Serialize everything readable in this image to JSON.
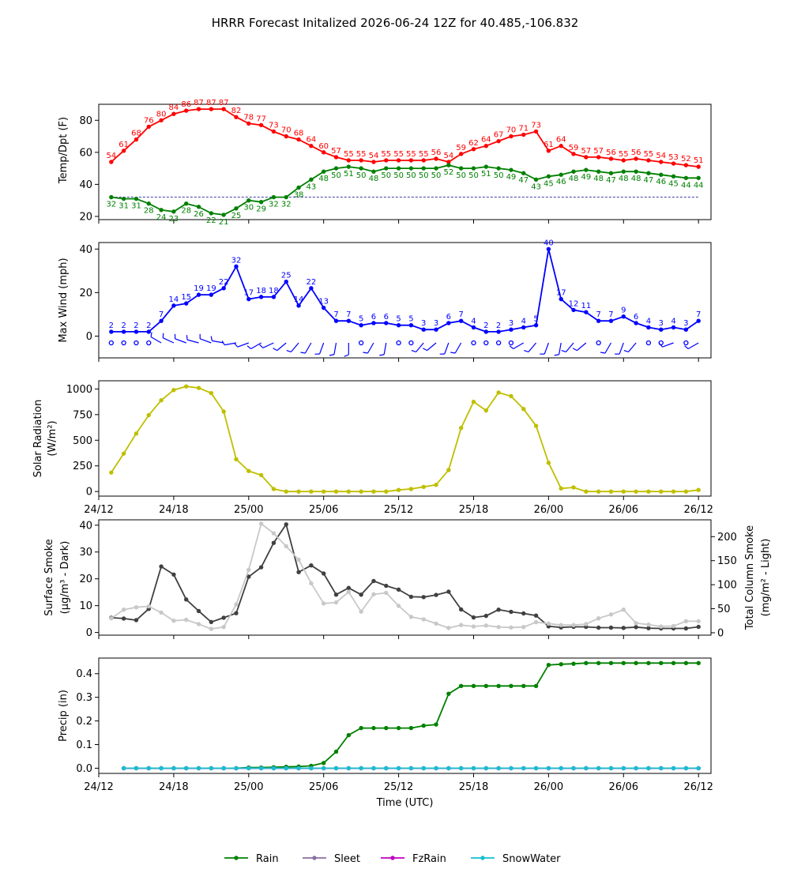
{
  "figure": {
    "title": "HRRR Forecast Initalized 2026-06-24 12Z for 40.485,-106.832"
  },
  "chart_data": [
    {
      "type": "line",
      "id": "temp",
      "ylabel": "Temp/Dpt (F)",
      "ylim": [
        18,
        90
      ],
      "yticks": [
        20,
        40,
        60,
        80
      ],
      "x": [
        1,
        2,
        3,
        4,
        5,
        6,
        7,
        8,
        9,
        10,
        11,
        12,
        13,
        14,
        15,
        16,
        17,
        18,
        19,
        20,
        21,
        22,
        23,
        24,
        25,
        26,
        27,
        28,
        29,
        30,
        31,
        32,
        33,
        34,
        35,
        36,
        37,
        38,
        39,
        40,
        41,
        42,
        43,
        44,
        45,
        46,
        47,
        48
      ],
      "reference_line": 32,
      "series": [
        {
          "color": "#ff0000",
          "values": [
            54,
            61,
            68,
            76,
            80,
            84,
            86,
            87,
            87,
            87,
            82,
            78,
            77,
            73,
            70,
            68,
            64,
            60,
            57,
            55,
            55,
            54,
            55,
            55,
            55,
            55,
            56,
            54,
            59,
            62,
            64,
            67,
            70,
            71,
            73,
            61,
            64,
            59,
            57,
            57,
            56,
            55,
            56,
            55,
            54,
            53,
            52,
            51
          ]
        },
        {
          "color": "#008000",
          "values": [
            32,
            31,
            31,
            28,
            24,
            23,
            28,
            26,
            22,
            21,
            25,
            30,
            29,
            32,
            32,
            38,
            43,
            48,
            50,
            51,
            50,
            48,
            50,
            50,
            50,
            50,
            50,
            52,
            50,
            50,
            51,
            50,
            49,
            47,
            43,
            45,
            46,
            48,
            49,
            48,
            47,
            48,
            48,
            47,
            46,
            45,
            44,
            44
          ]
        }
      ]
    },
    {
      "type": "line",
      "id": "wind",
      "ylabel": "Max Wind (mph)",
      "ylim": [
        -10,
        43
      ],
      "yticks": [
        0,
        20,
        40
      ],
      "x": [
        1,
        2,
        3,
        4,
        5,
        6,
        7,
        8,
        9,
        10,
        11,
        12,
        13,
        14,
        15,
        16,
        17,
        18,
        19,
        20,
        21,
        22,
        23,
        24,
        25,
        26,
        27,
        28,
        29,
        30,
        31,
        32,
        33,
        34,
        35,
        36,
        37,
        38,
        39,
        40,
        41,
        42,
        43,
        44,
        45,
        46,
        47,
        48
      ],
      "series": [
        {
          "color": "#0000ff",
          "values": [
            2,
            2,
            2,
            2,
            7,
            14,
            15,
            19,
            19,
            22,
            32,
            17,
            18,
            18,
            25,
            14,
            22,
            13,
            7,
            7,
            5,
            6,
            6,
            5,
            5,
            3,
            3,
            6,
            7,
            4,
            2,
            2,
            3,
            4,
            5,
            40,
            17,
            12,
            11,
            7,
            7,
            9,
            6,
            4,
            3,
            4,
            3,
            7
          ]
        }
      ],
      "barbs_calm": [
        1,
        2,
        3,
        4,
        21,
        24,
        25,
        30,
        31,
        32,
        33,
        40,
        44,
        45,
        47
      ]
    },
    {
      "type": "line",
      "id": "solar",
      "ylabel": "Solar Radiation (W/m²)",
      "ylim": [
        -45,
        1080
      ],
      "yticks": [
        0,
        250,
        500,
        750,
        1000
      ],
      "x": [
        1,
        2,
        3,
        4,
        5,
        6,
        7,
        8,
        9,
        10,
        11,
        12,
        13,
        14,
        15,
        16,
        17,
        18,
        19,
        20,
        21,
        22,
        23,
        24,
        25,
        26,
        27,
        28,
        29,
        30,
        31,
        32,
        33,
        34,
        35,
        36,
        37,
        38,
        39,
        40,
        41,
        42,
        43,
        44,
        45,
        46,
        47,
        48
      ],
      "series": [
        {
          "color": "#bfbf00",
          "values": [
            185,
            370,
            565,
            745,
            890,
            990,
            1025,
            1010,
            960,
            780,
            315,
            200,
            160,
            25,
            0,
            0,
            0,
            0,
            0,
            0,
            0,
            0,
            0,
            15,
            25,
            45,
            65,
            210,
            620,
            875,
            790,
            965,
            930,
            805,
            640,
            280,
            30,
            40,
            0,
            0,
            0,
            0,
            0,
            0,
            0,
            0,
            0,
            15
          ]
        }
      ]
    },
    {
      "type": "line",
      "id": "smoke",
      "ylabel": "Surface Smoke (μg/m³ - Dark)",
      "y2label": "Total Column Smoke (mg/m² - Light)",
      "ylim": [
        -1,
        42
      ],
      "yticks": [
        0,
        10,
        20,
        30,
        40
      ],
      "y2lim": [
        -5,
        235
      ],
      "y2ticks": [
        0,
        50,
        100,
        150,
        200
      ],
      "x": [
        1,
        2,
        3,
        4,
        5,
        6,
        7,
        8,
        9,
        10,
        11,
        12,
        13,
        14,
        15,
        16,
        17,
        18,
        19,
        20,
        21,
        22,
        23,
        24,
        25,
        26,
        27,
        28,
        29,
        30,
        31,
        32,
        33,
        34,
        35,
        36,
        37,
        38,
        39,
        40,
        41,
        42,
        43,
        44,
        45,
        46,
        47,
        48
      ],
      "series": [
        {
          "color": "#404040",
          "axis": "left",
          "values": [
            5.5,
            5.2,
            4.6,
            8.8,
            24.6,
            21.6,
            12.3,
            8.0,
            3.9,
            5.5,
            7.2,
            20.8,
            24.3,
            33.4,
            40.3,
            22.5,
            25.0,
            22.0,
            14.1,
            16.6,
            14.1,
            19.2,
            17.4,
            16.0,
            13.3,
            13.2,
            14.0,
            15.2,
            8.6,
            5.6,
            6.2,
            8.5,
            7.7,
            7.1,
            6.3,
            2.3,
            1.9,
            2.1,
            2.1,
            1.8,
            1.8,
            1.7,
            2.0,
            1.6,
            1.5,
            1.5,
            1.5,
            2.1
          ]
        },
        {
          "color": "#c8c8c8",
          "axis": "right",
          "values": [
            30,
            48,
            53,
            55,
            42,
            25,
            27,
            18,
            8,
            12,
            59,
            131,
            227,
            207,
            180,
            152,
            103,
            61,
            63,
            85,
            44,
            80,
            83,
            56,
            33,
            28,
            19,
            10,
            16,
            13,
            15,
            12,
            11,
            12,
            22,
            19,
            16,
            16,
            18,
            30,
            38,
            48,
            20,
            17,
            13,
            14,
            24,
            24
          ]
        }
      ]
    },
    {
      "type": "line",
      "id": "precip",
      "ylabel": "Precip (in)",
      "xlabel": "Time (UTC)",
      "ylim": [
        -0.022,
        0.466
      ],
      "yticks": [
        0.0,
        0.1,
        0.2,
        0.3,
        0.4
      ],
      "x": [
        2,
        3,
        4,
        5,
        6,
        7,
        8,
        9,
        10,
        11,
        12,
        13,
        14,
        15,
        16,
        17,
        18,
        19,
        20,
        21,
        22,
        23,
        24,
        25,
        26,
        27,
        28,
        29,
        30,
        31,
        32,
        33,
        34,
        35,
        36,
        37,
        38,
        39,
        40,
        41,
        42,
        43,
        44,
        45,
        46,
        47,
        48
      ],
      "series": [
        {
          "name": "Rain",
          "color": "#008000",
          "values": [
            0,
            0,
            0,
            0,
            0,
            0,
            0,
            0,
            0,
            0,
            0.003,
            0.003,
            0.004,
            0.006,
            0.007,
            0.01,
            0.022,
            0.07,
            0.14,
            0.17,
            0.17,
            0.17,
            0.17,
            0.17,
            0.18,
            0.185,
            0.315,
            0.348,
            0.348,
            0.348,
            0.348,
            0.348,
            0.348,
            0.348,
            0.437,
            0.44,
            0.442,
            0.445,
            0.445,
            0.445,
            0.445,
            0.445,
            0.445,
            0.445,
            0.445,
            0.445,
            0.445
          ]
        },
        {
          "name": "Sleet",
          "color": "#8c6fa0",
          "values": [
            0,
            0,
            0,
            0,
            0,
            0,
            0,
            0,
            0,
            0,
            0,
            0,
            0,
            0,
            0,
            0,
            0,
            0,
            0,
            0,
            0,
            0,
            0,
            0,
            0,
            0,
            0,
            0,
            0,
            0,
            0,
            0,
            0,
            0,
            0,
            0,
            0,
            0,
            0,
            0,
            0,
            0,
            0,
            0,
            0,
            0,
            0
          ]
        },
        {
          "name": "FzRain",
          "color": "#c000c0",
          "values": [
            0,
            0,
            0,
            0,
            0,
            0,
            0,
            0,
            0,
            0,
            0,
            0,
            0,
            0,
            0,
            0,
            0,
            0,
            0,
            0,
            0,
            0,
            0,
            0,
            0,
            0,
            0,
            0,
            0,
            0,
            0,
            0,
            0,
            0,
            0,
            0,
            0,
            0,
            0,
            0,
            0,
            0,
            0,
            0,
            0,
            0,
            0
          ]
        },
        {
          "name": "SnowWater",
          "color": "#17becf",
          "values": [
            0,
            0,
            0,
            0,
            0,
            0,
            0,
            0,
            0,
            0,
            0,
            0,
            0,
            0,
            0,
            0,
            0,
            0,
            0,
            0,
            0,
            0,
            0,
            0,
            0,
            0,
            0,
            0,
            0,
            0,
            0,
            0,
            0,
            0,
            0,
            0,
            0,
            0,
            0,
            0,
            0,
            0,
            0,
            0,
            0,
            0,
            0
          ]
        }
      ]
    }
  ],
  "x_axis": {
    "xlim": [
      0,
      49
    ],
    "ticks": [
      0,
      6,
      12,
      18,
      24,
      30,
      36,
      42,
      48
    ],
    "tick_labels": [
      "24/12",
      "24/18",
      "25/00",
      "25/06",
      "25/12",
      "25/18",
      "26/00",
      "26/06",
      "26/12"
    ]
  },
  "legend": {
    "placement": "bottom-center",
    "items": [
      {
        "label": "Rain",
        "color": "#008000"
      },
      {
        "label": "Sleet",
        "color": "#8c6fa0"
      },
      {
        "label": "FzRain",
        "color": "#c000c0"
      },
      {
        "label": "SnowWater",
        "color": "#17becf"
      }
    ]
  }
}
